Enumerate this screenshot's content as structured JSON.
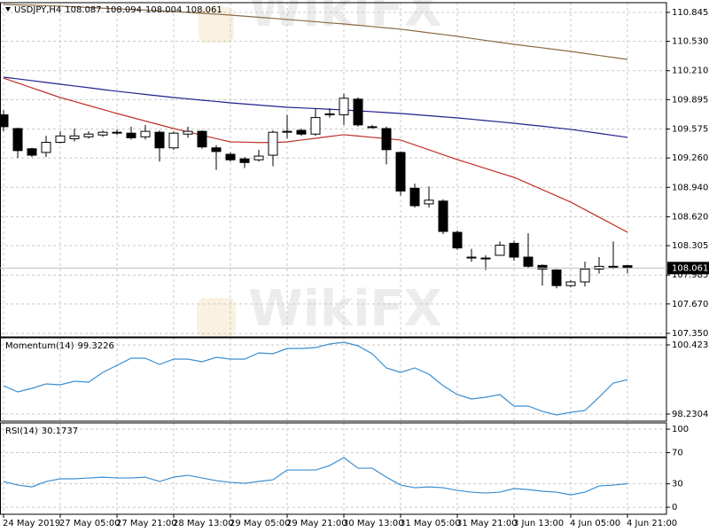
{
  "chart_data": [
    {
      "type": "candlestick",
      "title": "USDJPY,H4",
      "watermark": "WikiFX",
      "categories": [
        "24 May 2019",
        null,
        null,
        null,
        "27 May 05:00",
        null,
        null,
        null,
        "27 May 21:00",
        null,
        null,
        null,
        "28 May 13:00",
        null,
        null,
        null,
        "29 May 05:00",
        null,
        null,
        null,
        "29 May 21:00",
        null,
        null,
        null,
        "30 May 13:00",
        null,
        null,
        null,
        "31 May 05:00",
        null,
        null,
        null,
        "31 May 21:00",
        null,
        null,
        null,
        "3 Jun 13:00",
        null,
        null,
        null,
        "4 Jun 05:00",
        null,
        null,
        null,
        "4 Jun 21:00"
      ],
      "open": [
        109.73,
        109.58,
        109.36,
        109.32,
        109.43,
        109.47,
        109.49,
        109.51,
        109.54,
        109.53,
        109.49,
        109.54,
        109.37,
        109.52,
        109.55,
        109.37,
        109.3,
        109.25,
        109.24,
        109.29,
        109.54,
        109.56,
        109.52,
        109.73,
        109.73,
        109.9,
        109.6,
        109.58,
        109.32,
        108.93,
        108.76,
        108.79,
        108.45,
        108.17,
        108.17,
        108.2,
        108.33,
        108.18,
        108.09,
        108.04,
        107.87,
        107.91,
        108.05,
        108.08,
        108.087
      ],
      "high": [
        109.78,
        109.59,
        109.37,
        109.5,
        109.55,
        109.58,
        109.55,
        109.56,
        109.57,
        109.6,
        109.62,
        109.56,
        109.55,
        109.6,
        109.56,
        109.4,
        109.32,
        109.27,
        109.35,
        109.56,
        109.73,
        109.58,
        109.8,
        109.8,
        109.96,
        109.92,
        109.62,
        109.6,
        109.33,
        108.98,
        108.95,
        108.81,
        108.47,
        108.27,
        108.2,
        108.35,
        108.36,
        108.44,
        108.1,
        108.05,
        107.93,
        108.13,
        108.18,
        108.35,
        108.094
      ],
      "low": [
        109.55,
        109.26,
        109.27,
        109.27,
        109.42,
        109.44,
        109.47,
        109.49,
        109.51,
        109.46,
        109.46,
        109.22,
        109.35,
        109.48,
        109.36,
        109.13,
        109.22,
        109.15,
        109.22,
        109.17,
        109.47,
        109.5,
        109.5,
        109.7,
        109.62,
        109.6,
        109.58,
        109.19,
        108.85,
        108.72,
        108.72,
        108.43,
        108.26,
        108.13,
        108.04,
        108.2,
        108.14,
        108.06,
        107.87,
        107.84,
        107.85,
        107.86,
        108.0,
        108.05,
        108.004
      ],
      "close": [
        109.6,
        109.34,
        109.29,
        109.43,
        109.5,
        109.5,
        109.52,
        109.54,
        109.53,
        109.48,
        109.55,
        109.37,
        109.53,
        109.55,
        109.38,
        109.33,
        109.24,
        109.21,
        109.28,
        109.54,
        109.55,
        109.52,
        109.7,
        109.74,
        109.91,
        109.62,
        109.6,
        109.35,
        108.9,
        108.74,
        108.8,
        108.46,
        108.28,
        108.18,
        108.17,
        108.31,
        108.18,
        108.08,
        108.05,
        107.87,
        107.91,
        108.05,
        108.08,
        108.08,
        108.061
      ],
      "up_color": "#ffffff",
      "down_color": "#000000",
      "lines": [
        {
          "color": "#8b6a45",
          "values": [
            110.932,
            110.927,
            110.923,
            110.918,
            110.913,
            110.906,
            110.899,
            110.891,
            110.884,
            110.877,
            110.87,
            110.862,
            110.855,
            110.845,
            110.835,
            110.826,
            110.816,
            110.804,
            110.792,
            110.78,
            110.768,
            110.756,
            110.744,
            110.731,
            110.719,
            110.705,
            110.691,
            110.676,
            110.662,
            110.643,
            110.623,
            110.604,
            110.584,
            110.562,
            110.54,
            110.519,
            110.497,
            110.478,
            110.459,
            110.439,
            110.42,
            110.398,
            110.376,
            110.355,
            110.333
          ]
        },
        {
          "color": "#1f1f8f",
          "values": [
            110.14,
            110.121,
            110.102,
            110.082,
            110.063,
            110.044,
            110.025,
            110.005,
            109.986,
            109.969,
            109.952,
            109.935,
            109.918,
            109.904,
            109.889,
            109.875,
            109.86,
            109.848,
            109.836,
            109.824,
            109.812,
            109.805,
            109.798,
            109.79,
            109.783,
            109.773,
            109.764,
            109.754,
            109.744,
            109.732,
            109.72,
            109.708,
            109.696,
            109.682,
            109.667,
            109.653,
            109.638,
            109.621,
            109.605,
            109.588,
            109.571,
            109.549,
            109.528,
            109.506,
            109.484
          ]
        },
        {
          "color": "#c0302a",
          "values": [
            110.13,
            110.077,
            110.024,
            109.971,
            109.918,
            109.875,
            109.831,
            109.788,
            109.744,
            109.703,
            109.662,
            109.621,
            109.58,
            109.544,
            109.507,
            109.471,
            109.435,
            109.432,
            109.428,
            109.428,
            109.435,
            109.455,
            109.474,
            109.494,
            109.513,
            109.499,
            109.484,
            109.47,
            109.455,
            109.402,
            109.349,
            109.295,
            109.242,
            109.194,
            109.145,
            109.097,
            109.049,
            108.982,
            108.914,
            108.847,
            108.779,
            108.697,
            108.615,
            108.533,
            108.451
          ]
        }
      ],
      "ylim": [
        107.311,
        110.951
      ],
      "yticks": [
        110.845,
        {
          "value": 110.53,
          "label": "110.530"
        },
        {
          "value": 110.21,
          "label": "110.210"
        },
        109.895,
        109.575,
        {
          "value": 109.26,
          "label": "109.260"
        },
        {
          "value": 108.94,
          "label": "108.940"
        },
        {
          "value": 108.62,
          "label": "108.620"
        },
        108.305,
        107.985,
        {
          "value": 107.67,
          "label": "107.670"
        },
        {
          "value": 107.35,
          "label": "107.350"
        }
      ],
      "grid": true
    },
    {
      "type": "line",
      "title": "Momentum(14)",
      "color": "#3a8ed0",
      "values": [
        99.13,
        98.933,
        99.046,
        99.187,
        99.158,
        99.271,
        99.243,
        99.552,
        99.777,
        100.002,
        100.002,
        99.805,
        99.974,
        99.974,
        99.89,
        100.03,
        99.974,
        99.974,
        100.171,
        100.143,
        100.311,
        100.311,
        100.339,
        100.452,
        100.508,
        100.396,
        100.143,
        99.693,
        99.552,
        99.693,
        99.496,
        99.13,
        98.849,
        98.708,
        98.765,
        98.849,
        98.484,
        98.484,
        98.315,
        98.202,
        98.287,
        98.343,
        98.765,
        99.215,
        99.3226
      ],
      "ylim": [
        98.005,
        100.649
      ],
      "yticks": [
        100.4238,
        98.2304
      ],
      "grid": true
    },
    {
      "type": "line",
      "title": "RSI(14)",
      "color": "#3a8ed0",
      "values": [
        33.0,
        28.4,
        26.1,
        33.0,
        36.4,
        36.4,
        37.5,
        38.6,
        37.5,
        37.5,
        38.6,
        33.0,
        38.6,
        40.9,
        37.5,
        34.1,
        31.8,
        30.7,
        33.0,
        35.2,
        47.7,
        47.7,
        47.7,
        53.4,
        63.6,
        50.0,
        50.0,
        38.6,
        28.4,
        25.0,
        26.1,
        25.0,
        21.6,
        19.3,
        18.2,
        19.3,
        23.9,
        22.7,
        20.5,
        19.3,
        15.9,
        19.3,
        27.3,
        28.4,
        30.1737
      ],
      "ylim": [
        -9,
        108
      ],
      "yticks": [
        100,
        70,
        30,
        0
      ],
      "grid": true
    }
  ]
}
